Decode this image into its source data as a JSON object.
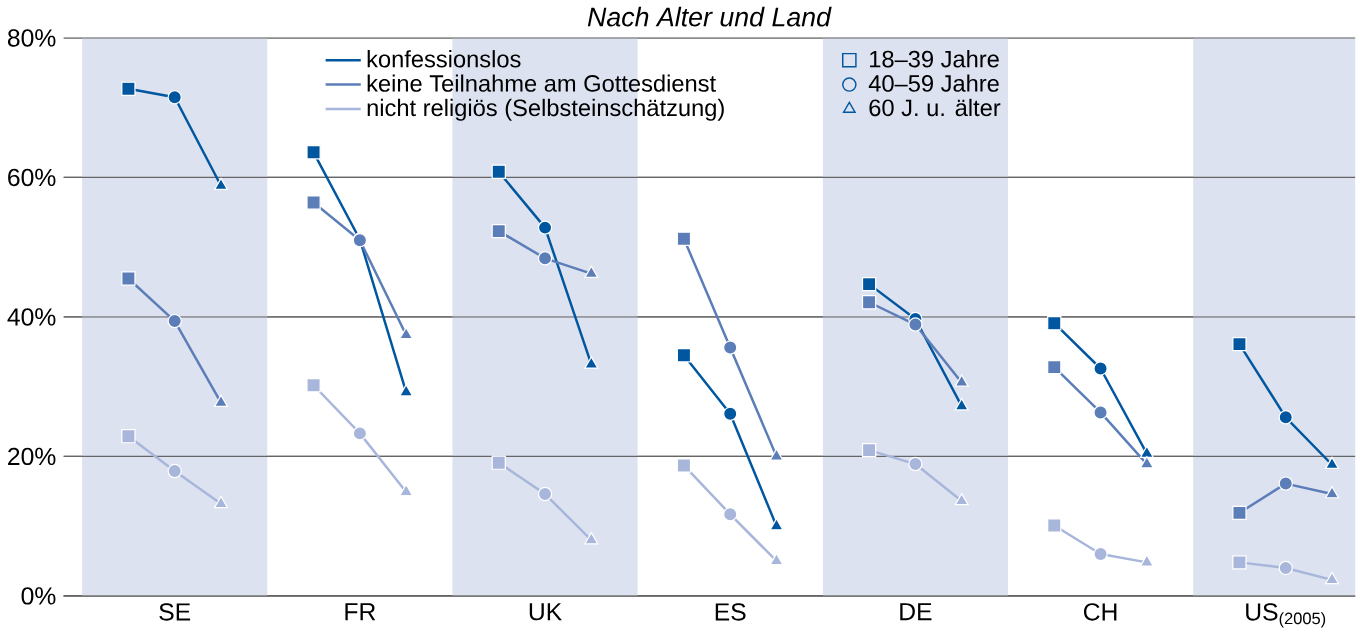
{
  "chart_data": {
    "type": "line",
    "title": "*Nach Alter und Land*",
    "categories": [
      null,
      "SE",
      null,
      null,
      null,
      "FR",
      null,
      null,
      null,
      "UK",
      null,
      null,
      null,
      "ES",
      null,
      null,
      null,
      "DE",
      null,
      null,
      null,
      "CH",
      null,
      null,
      null,
      "US$_{(2005)}$",
      null
    ],
    "series": [
      {
        "name": "konfessionslos",
        "color": "#0057a0",
        "marker": [
          "square",
          "circle",
          "triangle"
        ],
        "values": [
          72.7,
          71.5,
          58.8,
          null,
          63.6,
          51.1,
          29.2,
          null,
          60.8,
          52.8,
          33.2,
          null,
          34.5,
          26.1,
          10.0,
          null,
          44.7,
          39.7,
          27.2,
          null,
          39.1,
          32.6,
          20.4,
          null,
          36.1,
          25.6,
          18.8
        ]
      },
      {
        "name": "keine Teilnahme am Gottesdienst",
        "color": "#5b7db8",
        "marker": [
          "square",
          "circle",
          "triangle"
        ],
        "values": [
          45.5,
          39.4,
          27.7,
          null,
          56.4,
          51.0,
          37.4,
          null,
          52.3,
          48.4,
          46.2,
          null,
          51.2,
          35.6,
          20.0,
          null,
          42.1,
          38.9,
          30.6,
          null,
          32.8,
          26.3,
          18.9,
          null,
          11.9,
          16.1,
          14.6
        ]
      },
      {
        "name": "nicht religiös (Selbsteinschätzung)",
        "color": "#a7b6da",
        "marker": [
          "square",
          "circle",
          "triangle"
        ],
        "values": [
          22.9,
          17.9,
          13.2,
          null,
          30.2,
          23.3,
          14.9,
          null,
          19.1,
          14.6,
          8.0,
          null,
          18.7,
          11.7,
          5.0,
          null,
          20.9,
          18.9,
          13.6,
          null,
          10.1,
          6.0,
          4.8,
          null,
          4.8,
          4.0,
          2.3
        ]
      },
      {
        "type": "scatter",
        "name": "18–39 Jahre",
        "color": "#0057a0",
        "marker": "square",
        "values": [
          null,
          null,
          null,
          null,
          null,
          null,
          null,
          null,
          null,
          null,
          null,
          null,
          null,
          null,
          null,
          null,
          null,
          null,
          null,
          null,
          null,
          null,
          null,
          null,
          null,
          null,
          null
        ]
      },
      {
        "type": "scatter",
        "name": "40–59 Jahre",
        "color": "#0057a0",
        "marker": "circle",
        "values": [
          null,
          null,
          null,
          null,
          null,
          null,
          null,
          null,
          null,
          null,
          null,
          null,
          null,
          null,
          null,
          null,
          null,
          null,
          null,
          null,
          null,
          null,
          null,
          null,
          null,
          null,
          null
        ]
      },
      {
        "type": "scatter",
        "name": "60 J. u. älter",
        "color": "#0057a0",
        "marker": "triangle",
        "values": [
          null,
          null,
          null,
          null,
          null,
          null,
          null,
          null,
          null,
          null,
          null,
          null,
          null,
          null,
          null,
          null,
          null,
          null,
          null,
          null,
          null,
          null,
          null,
          null,
          null,
          null,
          null
        ]
      }
    ],
    "ylim": [
      0,
      80
    ],
    "yticks": [
      {
        "value": 0,
        "label": "0%"
      },
      {
        "value": 20,
        "label": "20%"
      },
      {
        "value": 40,
        "label": "40%"
      },
      {
        "value": 60,
        "label": "60%"
      },
      {
        "value": 80,
        "label": "80%"
      }
    ],
    "grid": "y",
    "legend": "top",
    "line_style": "solid"
  }
}
